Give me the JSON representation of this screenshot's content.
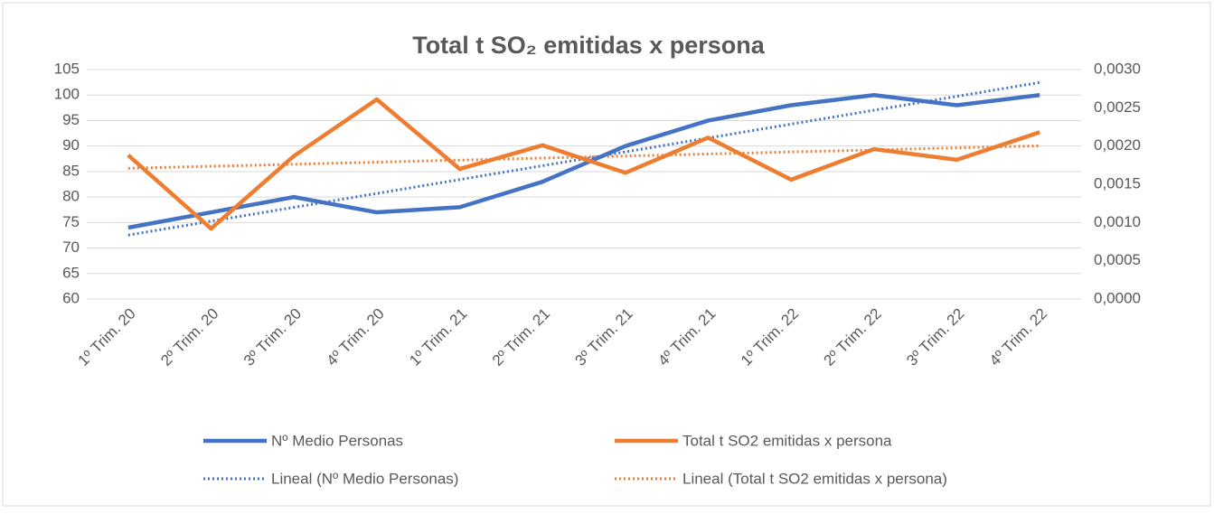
{
  "chart_data": {
    "type": "line",
    "title": "Total t SO₂ emitidas x persona",
    "categories": [
      "1º Trim. 20",
      "2º Trim. 20",
      "3º Trim. 20",
      "4º Trim. 20",
      "1º Trim. 21",
      "2º Trim. 21",
      "3º Trim. 21",
      "4º Trim. 21",
      "1º Trim. 22",
      "2º Trim. 22",
      "3º Trim. 22",
      "4º Trim. 22"
    ],
    "series": [
      {
        "name": "Nº Medio Personas",
        "color": "#4472c4",
        "axis": "y",
        "values": [
          74,
          77,
          80,
          77,
          78,
          83,
          90,
          95,
          98,
          100,
          98,
          100
        ],
        "trendline": {
          "name": "Lineal (Nº Medio Personas)",
          "type": "linear"
        }
      },
      {
        "name": "Total t SO2 emitidas x persona",
        "color": "#ed7d31",
        "axis": "y2",
        "values": [
          0.00188,
          0.00092,
          0.00187,
          0.00261,
          0.0017,
          0.00201,
          0.00165,
          0.00211,
          0.00156,
          0.00196,
          0.00182,
          0.00218
        ],
        "trendline": {
          "name": "Lineal (Total t SO2 emitidas x persona)",
          "type": "linear"
        }
      }
    ],
    "ylim": [
      60,
      105
    ],
    "yticks": [
      60,
      65,
      70,
      75,
      80,
      85,
      90,
      95,
      100,
      105
    ],
    "y2lim": [
      0,
      0.003
    ],
    "y2ticks": [
      {
        "value": 0,
        "label": "0,0000"
      },
      {
        "value": 0.0005,
        "label": "0,0005"
      },
      {
        "value": 0.001,
        "label": "0,0010"
      },
      {
        "value": 0.0015,
        "label": "0,0015"
      },
      {
        "value": 0.002,
        "label": "0,0020"
      },
      {
        "value": 0.0025,
        "label": "0,0025"
      },
      {
        "value": 0.003,
        "label": "0,0030"
      }
    ],
    "grid": true,
    "legend": "bottom"
  }
}
